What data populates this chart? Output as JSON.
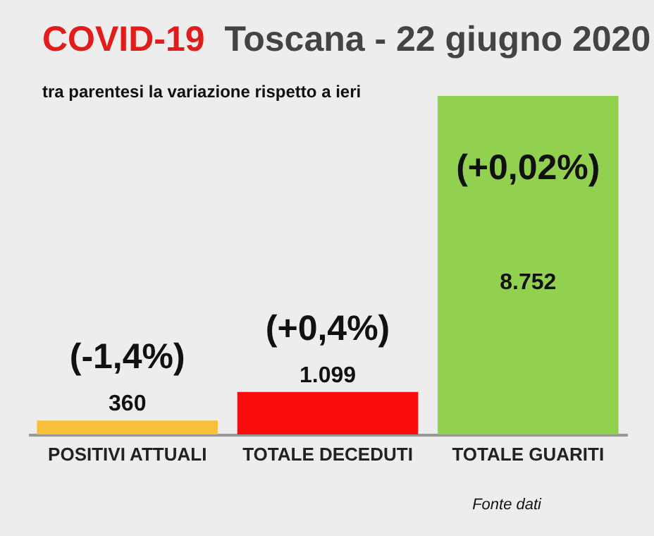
{
  "chart_data": {
    "type": "bar",
    "title": "COVID-19 Toscana - 22 giugno 2020",
    "subtitle": "tra parentesi la variazione rispetto a ieri",
    "categories": [
      "POSITIVI ATTUALI",
      "TOTALE DECEDUTI",
      "TOTALE GUARITI"
    ],
    "values": [
      360,
      1099,
      8752
    ],
    "colors": [
      "#f8c03a",
      "#fb0d0d",
      "#92d050"
    ],
    "value_labels": [
      "360",
      "1.099",
      "8.752"
    ],
    "annotations": [
      "(-1,4%)",
      "(+0,4%)",
      "(+0,02%)",
      "Fonte dati"
    ],
    "tick_labels": "x",
    "legend": false
  }
}
